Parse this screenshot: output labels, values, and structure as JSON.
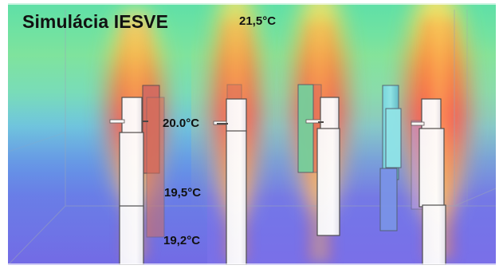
{
  "title": "Simulácia IESVE",
  "temperatures": {
    "top": "21,5°C",
    "upper": "20.0°C",
    "middle": "19,5°C",
    "lower": "19,2°C"
  }
}
